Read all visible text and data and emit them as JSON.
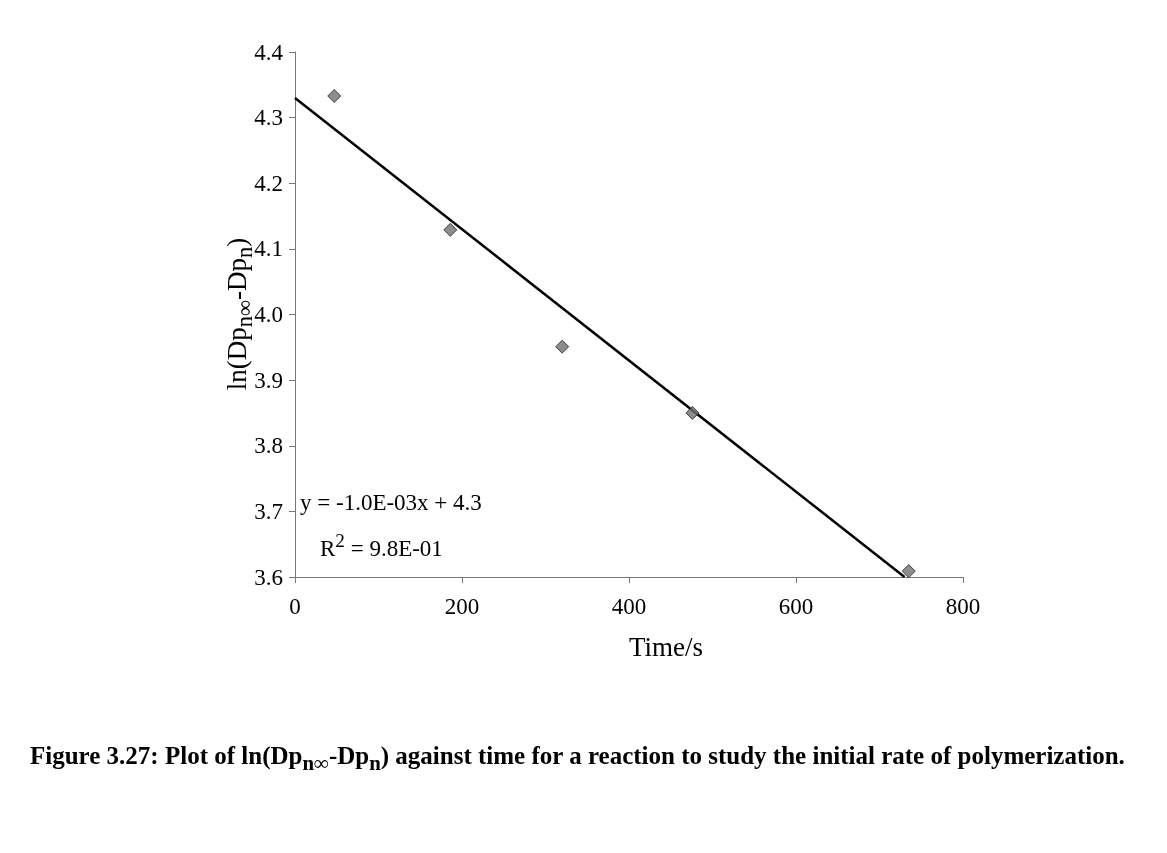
{
  "chart_data": {
    "type": "scatter",
    "title": "Figure 3.27: Plot of ln(Dp$_{n∞}$-Dp$_{n}$) against time for a reaction to study the initial rate of polymerization.",
    "xlabel": "Time/s",
    "ylabel": "ln(Dp$_{n∞}$-Dp$_{n}$)",
    "x": [
      47,
      186,
      320,
      476,
      735
    ],
    "series": [
      {
        "color": "#707070",
        "values": [
          4.333,
          4.129,
          3.951,
          3.85,
          3.609
        ],
        "marker": "diamond"
      },
      {
        "type": "line",
        "color": "#000000",
        "x": [
          0,
          730
        ],
        "values": [
          4.33,
          3.6
        ],
        "marker": "none",
        "line_style": "solid"
      }
    ],
    "annotations": [
      "y = -1.0E-03x + 4.3",
      "R$^{2}$ = 9.8E-01"
    ],
    "xlim": [
      0,
      800
    ],
    "xticks": [
      0,
      200,
      400,
      600,
      800
    ],
    "ylim": [
      3.6,
      4.4
    ],
    "yticks": [
      3.6,
      3.7,
      3.8,
      3.9,
      {
        "value": 4,
        "label": "4.0"
      },
      4.1,
      4.2,
      4.3,
      4.4
    ],
    "grid": false
  }
}
